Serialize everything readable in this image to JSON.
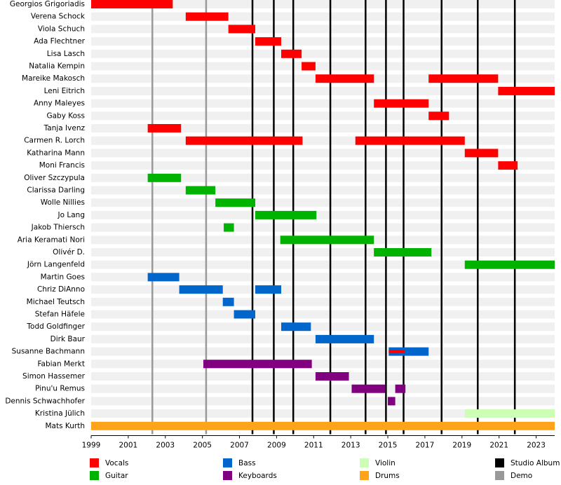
{
  "chart_data": {
    "type": "timeline",
    "xlim": [
      1999,
      2024
    ],
    "xticks": [
      1999,
      2001,
      2003,
      2005,
      2007,
      2009,
      2011,
      2013,
      2015,
      2017,
      2019,
      2021,
      2023
    ],
    "roles": [
      {
        "name": "Vocals",
        "color": "#ff0000"
      },
      {
        "name": "Guitar",
        "color": "#00b300"
      },
      {
        "name": "Bass",
        "color": "#0066cc"
      },
      {
        "name": "Keyboards",
        "color": "#800080"
      },
      {
        "name": "Violin",
        "color": "#ccffb3"
      },
      {
        "name": "Drums",
        "color": "#ffa31a"
      }
    ],
    "events": [
      {
        "name": "Studio Album",
        "color": "#000000",
        "years": [
          2007.7,
          2008.85,
          2009.9,
          2011.9,
          2013.8,
          2014.9,
          2015.85,
          2017.9,
          2019.85,
          2021.85
        ]
      },
      {
        "name": "Demo",
        "color": "#999999",
        "years": [
          2002.3,
          2005.2
        ]
      }
    ],
    "members": [
      {
        "name": "Georgios Grigoriadis",
        "spans": [
          {
            "role": "Vocals",
            "start": 1999,
            "end": 2003.4
          }
        ]
      },
      {
        "name": "Verena Schock",
        "spans": [
          {
            "role": "Vocals",
            "start": 2004.1,
            "end": 2006.4
          }
        ]
      },
      {
        "name": "Viola Schuch",
        "spans": [
          {
            "role": "Vocals",
            "start": 2006.4,
            "end": 2007.85
          }
        ]
      },
      {
        "name": "Ada Flechtner",
        "spans": [
          {
            "role": "Vocals",
            "start": 2007.85,
            "end": 2009.25
          }
        ]
      },
      {
        "name": "Lisa Lasch",
        "spans": [
          {
            "role": "Vocals",
            "start": 2009.25,
            "end": 2010.35
          }
        ]
      },
      {
        "name": "Natalia Kempin",
        "spans": [
          {
            "role": "Vocals",
            "start": 2010.35,
            "end": 2011.1
          }
        ]
      },
      {
        "name": "Mareike Makosch",
        "spans": [
          {
            "role": "Vocals",
            "start": 2011.1,
            "end": 2014.25
          },
          {
            "role": "Vocals",
            "start": 2017.2,
            "end": 2020.95
          }
        ]
      },
      {
        "name": "Leni Eitrich",
        "spans": [
          {
            "role": "Vocals",
            "start": 2020.95,
            "end": 2024
          }
        ]
      },
      {
        "name": "Anny Maleyes",
        "spans": [
          {
            "role": "Vocals",
            "start": 2014.25,
            "end": 2017.2
          }
        ]
      },
      {
        "name": "Gaby Koss",
        "spans": [
          {
            "role": "Vocals",
            "start": 2017.2,
            "end": 2018.3
          }
        ]
      },
      {
        "name": "Tanja Ivenz",
        "spans": [
          {
            "role": "Vocals",
            "start": 2002.05,
            "end": 2003.85
          }
        ]
      },
      {
        "name": "Carmen R. Lorch",
        "spans": [
          {
            "role": "Vocals",
            "start": 2004.1,
            "end": 2010.4
          },
          {
            "role": "Vocals",
            "start": 2013.25,
            "end": 2019.15
          }
        ]
      },
      {
        "name": "Katharina Mann",
        "spans": [
          {
            "role": "Vocals",
            "start": 2019.15,
            "end": 2020.95
          }
        ]
      },
      {
        "name": "Moni Francis",
        "spans": [
          {
            "role": "Vocals",
            "start": 2020.95,
            "end": 2022
          }
        ]
      },
      {
        "name": "Oliver Szczypula",
        "spans": [
          {
            "role": "Guitar",
            "start": 2002.05,
            "end": 2003.85
          }
        ]
      },
      {
        "name": "Clarissa Darling",
        "spans": [
          {
            "role": "Guitar",
            "start": 2004.1,
            "end": 2005.7
          }
        ]
      },
      {
        "name": "Wolle Nillies",
        "spans": [
          {
            "role": "Guitar",
            "start": 2005.7,
            "end": 2007.85
          }
        ]
      },
      {
        "name": "Jo Lang",
        "spans": [
          {
            "role": "Guitar",
            "start": 2007.85,
            "end": 2011.15
          }
        ]
      },
      {
        "name": "Jakob Thiersch",
        "spans": [
          {
            "role": "Guitar",
            "start": 2006.15,
            "end": 2006.7
          }
        ]
      },
      {
        "name": "Aria Keramati Nori",
        "spans": [
          {
            "role": "Guitar",
            "start": 2009.2,
            "end": 2014.25
          }
        ]
      },
      {
        "name": "Olivér D.",
        "spans": [
          {
            "role": "Guitar",
            "start": 2014.25,
            "end": 2017.35
          }
        ]
      },
      {
        "name": "Jörn Langenfeld",
        "spans": [
          {
            "role": "Guitar",
            "start": 2019.15,
            "end": 2024
          }
        ]
      },
      {
        "name": "Martin Goes",
        "spans": [
          {
            "role": "Bass",
            "start": 2002.05,
            "end": 2003.75
          }
        ]
      },
      {
        "name": "Chriz DiAnno",
        "spans": [
          {
            "role": "Bass",
            "start": 2003.75,
            "end": 2006.1
          },
          {
            "role": "Bass",
            "start": 2007.85,
            "end": 2009.25
          }
        ]
      },
      {
        "name": "Michael Teutsch",
        "spans": [
          {
            "role": "Bass",
            "start": 2006.1,
            "end": 2006.7
          }
        ]
      },
      {
        "name": "Stefan Häfele",
        "spans": [
          {
            "role": "Bass",
            "start": 2006.7,
            "end": 2007.85
          }
        ]
      },
      {
        "name": "Todd Goldfinger",
        "spans": [
          {
            "role": "Bass",
            "start": 2009.25,
            "end": 2010.85
          }
        ]
      },
      {
        "name": "Dirk Baur",
        "spans": [
          {
            "role": "Bass",
            "start": 2011.1,
            "end": 2014.25
          }
        ]
      },
      {
        "name": "Susanne Bachmann",
        "spans": [
          {
            "role": "Bass",
            "start": 2015.05,
            "end": 2017.2
          },
          {
            "role": "Vocals",
            "start": 2015.05,
            "end": 2015.9
          }
        ]
      },
      {
        "name": "Fabian Merkt",
        "spans": [
          {
            "role": "Keyboards",
            "start": 2005.05,
            "end": 2010.9
          }
        ]
      },
      {
        "name": "Simon Hassemer",
        "spans": [
          {
            "role": "Keyboards",
            "start": 2011.1,
            "end": 2012.9
          }
        ]
      },
      {
        "name": "Pinu'u Remus",
        "spans": [
          {
            "role": "Keyboards",
            "start": 2013.05,
            "end": 2014.85
          },
          {
            "role": "Keyboards",
            "start": 2015.4,
            "end": 2015.95
          }
        ]
      },
      {
        "name": "Dennis Schwachhofer",
        "spans": [
          {
            "role": "Keyboards",
            "start": 2015.0,
            "end": 2015.4
          }
        ]
      },
      {
        "name": "Kristina Jülich",
        "spans": [
          {
            "role": "Violin",
            "start": 2019.15,
            "end": 2024
          }
        ]
      },
      {
        "name": "Mats Kurth",
        "spans": [
          {
            "role": "Drums",
            "start": 1999,
            "end": 2024
          }
        ]
      }
    ]
  }
}
